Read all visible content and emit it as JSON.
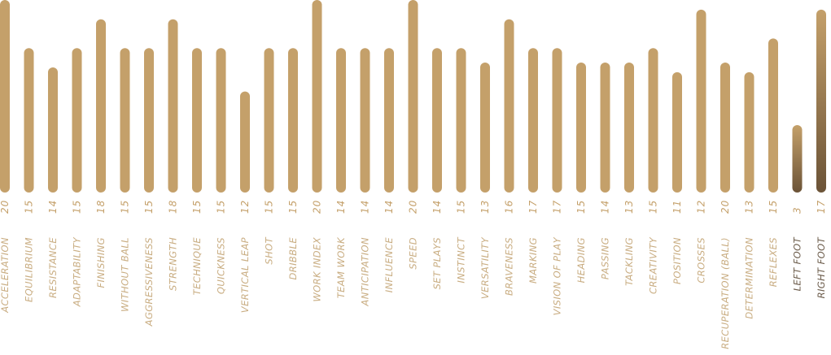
{
  "chart_data": {
    "type": "bar",
    "categories": [
      "ACCELERATION",
      "EQUILIBRIUM",
      "RESISTANCE",
      "ADAPTABILITY",
      "FINISHING",
      "WITHOUT BALL",
      "AGGRESSIVENESS",
      "STRENGTH",
      "TECHNIQUE",
      "QUICKNESS",
      "VERTICAL LEAP",
      "SHOT",
      "DRIBBLE",
      "WORK INDEX",
      "TEAM WORK",
      "ANTICIPATION",
      "INFLUENCE",
      "SPEED",
      "SET PLAYS",
      "INSTINCT",
      "VERSATILITY",
      "BRAVENESS",
      "MARKING",
      "VISION OF PLAY",
      "HEADING",
      "PASSING",
      "TACKLING",
      "CREATIVITY",
      "POSITION",
      "CROSSES",
      "RECUPERATION (BALL)",
      "DETERMINATION",
      "REFLEXES",
      "LEFT FOOT",
      "RIGHT FOOT"
    ],
    "values": [
      20,
      15,
      14,
      15,
      18,
      15,
      15,
      18,
      15,
      15,
      12,
      15,
      15,
      20,
      14,
      14,
      14,
      20,
      14,
      15,
      13,
      16,
      17,
      17,
      15,
      14,
      13,
      15,
      11,
      12,
      20,
      13,
      15,
      3,
      17
    ],
    "bar_heights": [
      20,
      15,
      13,
      15,
      18,
      15,
      15,
      18,
      15,
      15,
      10.5,
      15,
      15,
      20,
      15,
      15,
      15,
      20,
      15,
      15,
      13.5,
      18,
      15,
      15,
      13.5,
      13.5,
      13.5,
      15,
      12.5,
      19,
      13.5,
      12.5,
      16,
      7,
      19
    ],
    "ylim": [
      0,
      20
    ],
    "colors": {
      "bar": "#c4a06a",
      "highlight_top": "#c4a06a",
      "highlight_bottom": "#6b5337",
      "value_text": "#c4a06a",
      "label_text": "#c9ad82",
      "feet_label_text": "#6b5b4a"
    },
    "highlight_indices": [
      33,
      34
    ]
  }
}
